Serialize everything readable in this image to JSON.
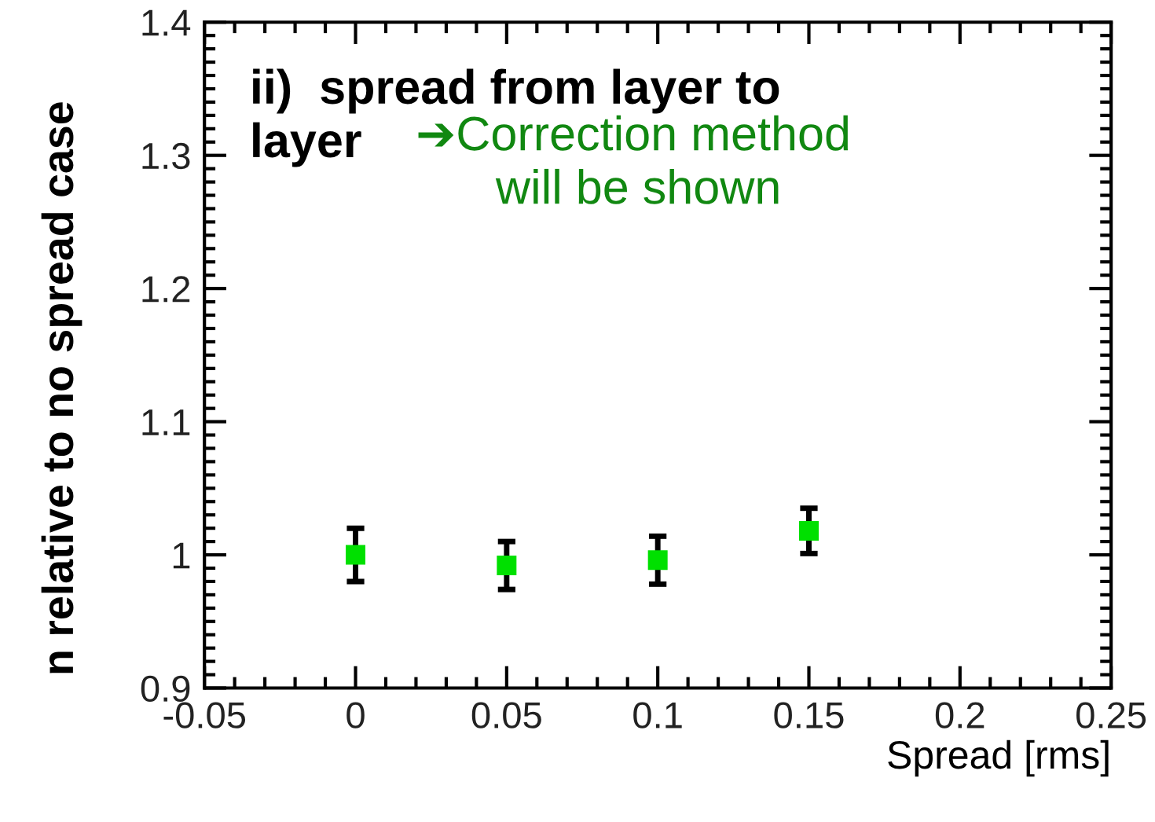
{
  "chart_data": {
    "type": "scatter",
    "xlabel": "Spread [rms]",
    "ylabel": "n relative to no spread case",
    "annotations": [
      "ii)  spread from layer to\nlayer",
      "➔Correction method\n      will be shown"
    ],
    "x": [
      0,
      0.05,
      0.1,
      0.15
    ],
    "series": [
      {
        "color": "#00e000",
        "values": [
          1.0,
          0.992,
          0.996,
          1.018
        ],
        "errors": [
          0.02,
          0.018,
          0.018,
          0.017
        ]
      }
    ],
    "xlim": [
      -0.05,
      0.25
    ],
    "xticks": [
      -0.05,
      0,
      0.05,
      0.1,
      0.15,
      0.2,
      0.25
    ],
    "ylim": [
      0.9,
      1.4
    ],
    "yticks": [
      0.9,
      1,
      1.1,
      1.2,
      1.3,
      1.4
    ],
    "marker": "square",
    "grid": false,
    "legend": false
  }
}
